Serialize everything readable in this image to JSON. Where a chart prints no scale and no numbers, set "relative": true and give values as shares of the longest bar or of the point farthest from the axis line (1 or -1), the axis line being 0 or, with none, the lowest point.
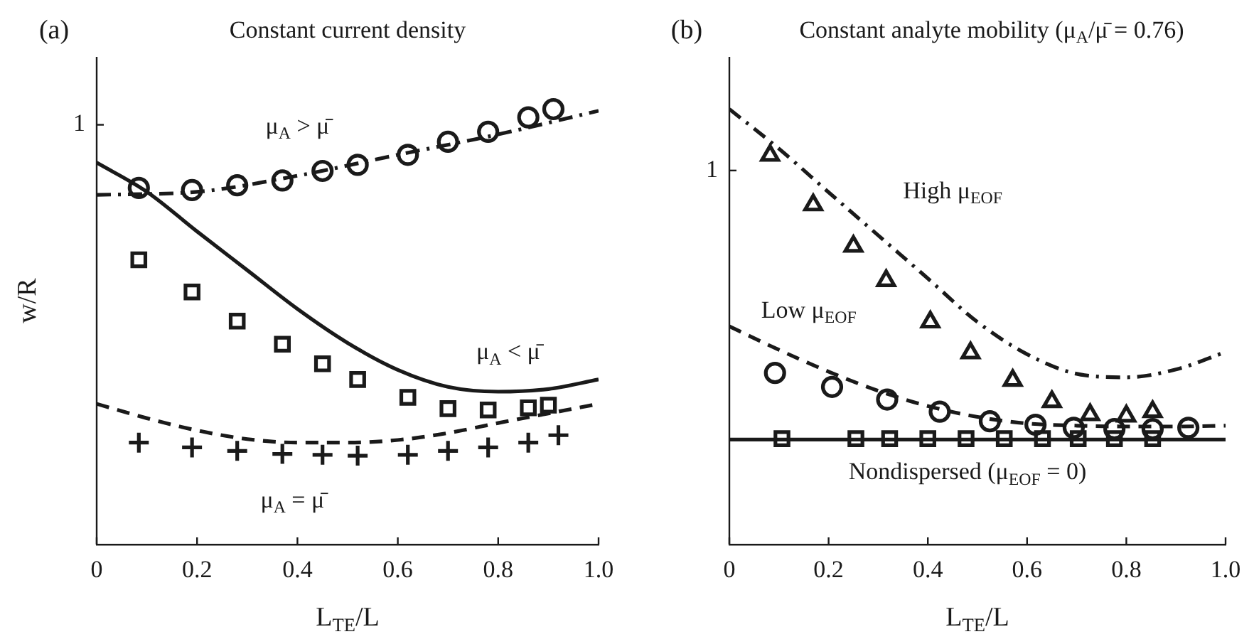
{
  "chart_data": [
    {
      "type": "scatter",
      "title": "Constant current density",
      "xlabel": "L$_{TE}$/L",
      "ylabel": "w/R",
      "relative": true,
      "xlim": [
        0,
        1
      ],
      "xticks": [
        0,
        0.2,
        0.4,
        0.6,
        0.8,
        {
          "value": 1,
          "label": "1.0"
        }
      ],
      "series": [
        {
          "type": "scatter",
          "marker": "circle",
          "color": "#1a1a1a",
          "x": [
            0.084,
            0.19,
            0.28,
            0.37,
            0.45,
            0.52,
            0.62,
            0.7,
            0.78,
            0.86,
            0.91
          ],
          "values": [
            0.819,
            0.814,
            0.825,
            0.836,
            0.858,
            0.872,
            0.895,
            0.925,
            0.948,
            0.981,
            1.0
          ]
        },
        {
          "type": "scatter",
          "marker": "square",
          "color": "#1a1a1a",
          "x": [
            0.084,
            0.19,
            0.28,
            0.37,
            0.45,
            0.52,
            0.62,
            0.7,
            0.78,
            0.86,
            0.9
          ],
          "values": [
            0.654,
            0.58,
            0.513,
            0.46,
            0.415,
            0.379,
            0.338,
            0.312,
            0.309,
            0.314,
            0.32
          ]
        },
        {
          "type": "scatter",
          "marker": "cross",
          "color": "#1a1a1a",
          "x": [
            0.084,
            0.19,
            0.28,
            0.37,
            0.45,
            0.52,
            0.62,
            0.7,
            0.78,
            0.86,
            0.92
          ],
          "values": [
            0.234,
            0.223,
            0.215,
            0.208,
            0.206,
            0.204,
            0.206,
            0.215,
            0.223,
            0.234,
            0.251
          ]
        },
        {
          "type": "line",
          "marker": "none",
          "line_style": "dashdot",
          "color": "#1a1a1a",
          "x": [
            0,
            0.2,
            0.4,
            0.6,
            0.8,
            1.0
          ],
          "values": [
            0.803,
            0.81,
            0.847,
            0.895,
            0.942,
            0.996
          ]
        },
        {
          "type": "line",
          "marker": "none",
          "line_style": "solid",
          "color": "#1a1a1a",
          "x": [
            0,
            0.1,
            0.2,
            0.3,
            0.4,
            0.5,
            0.6,
            0.7,
            0.8,
            0.9,
            1.0
          ],
          "values": [
            0.877,
            0.81,
            0.719,
            0.63,
            0.541,
            0.463,
            0.401,
            0.362,
            0.351,
            0.357,
            0.379
          ]
        },
        {
          "type": "line",
          "marker": "none",
          "line_style": "dashed",
          "color": "#1a1a1a",
          "x": [
            0,
            0.1,
            0.2,
            0.3,
            0.4,
            0.5,
            0.6,
            0.7,
            0.8,
            0.9,
            1.0
          ],
          "values": [
            0.323,
            0.29,
            0.262,
            0.242,
            0.234,
            0.234,
            0.24,
            0.256,
            0.279,
            0.301,
            0.323
          ]
        }
      ],
      "annotations": [
        "(a)",
        "1",
        "μ$_{A}$ > μ̄",
        "μ$_{A}$ < μ̄",
        "μ$_{A}$ = μ̄"
      ]
    },
    {
      "type": "scatter",
      "title": "Constant analyte mobility (μ$_{A}$/μ̄ = 0.76)",
      "xlabel": "L$_{TE}$/L",
      "relative": true,
      "xlim": [
        0,
        1
      ],
      "xticks": [
        0,
        0.2,
        0.4,
        0.6,
        0.8,
        {
          "value": 1,
          "label": "1.0"
        }
      ],
      "series": [
        {
          "type": "scatter",
          "marker": "triangle",
          "color": "#1a1a1a",
          "x": [
            0.082,
            0.169,
            0.25,
            0.316,
            0.405,
            0.486,
            0.571,
            0.65,
            0.727,
            0.8,
            0.853
          ],
          "values": [
            0.894,
            0.78,
            0.685,
            0.606,
            0.511,
            0.44,
            0.377,
            0.328,
            0.298,
            0.295,
            0.305
          ]
        },
        {
          "type": "scatter",
          "marker": "circle",
          "color": "#1a1a1a",
          "x": [
            0.092,
            0.207,
            0.318,
            0.424,
            0.525,
            0.617,
            0.694,
            0.776,
            0.853,
            0.925
          ],
          "values": [
            0.394,
            0.362,
            0.333,
            0.305,
            0.283,
            0.275,
            0.268,
            0.265,
            0.265,
            0.268
          ]
        },
        {
          "type": "scatter",
          "marker": "square",
          "color": "#1a1a1a",
          "x": [
            0.106,
            0.255,
            0.323,
            0.4,
            0.477,
            0.554,
            0.631,
            0.703,
            0.776,
            0.853
          ],
          "values": [
            0.243,
            0.243,
            0.243,
            0.243,
            0.243,
            0.243,
            0.243,
            0.243,
            0.243,
            0.243
          ]
        },
        {
          "type": "line",
          "marker": "none",
          "line_style": "solid",
          "color": "#1a1a1a",
          "x": [
            0,
            1.0
          ],
          "values": [
            0.241,
            0.241
          ]
        },
        {
          "type": "line",
          "marker": "none",
          "line_style": "dashdot",
          "color": "#1a1a1a",
          "x": [
            0,
            0.1,
            0.2,
            0.3,
            0.4,
            0.5,
            0.6,
            0.7,
            0.8,
            0.9,
            1.0
          ],
          "values": [
            1.0,
            0.909,
            0.809,
            0.71,
            0.611,
            0.511,
            0.437,
            0.392,
            0.384,
            0.402,
            0.442
          ]
        },
        {
          "type": "line",
          "marker": "none",
          "line_style": "dashed",
          "color": "#1a1a1a",
          "x": [
            0,
            0.1,
            0.2,
            0.3,
            0.4,
            0.5,
            0.6,
            0.7,
            0.8,
            0.9,
            1.0
          ],
          "values": [
            0.501,
            0.447,
            0.397,
            0.353,
            0.318,
            0.293,
            0.278,
            0.273,
            0.271,
            0.271,
            0.273
          ]
        }
      ],
      "annotations": [
        "(b)",
        "1",
        "High μ$_{EOF}$",
        "Low μ$_{EOF}$",
        "Nondispersed (μ$_{EOF}$ = 0)"
      ]
    }
  ]
}
